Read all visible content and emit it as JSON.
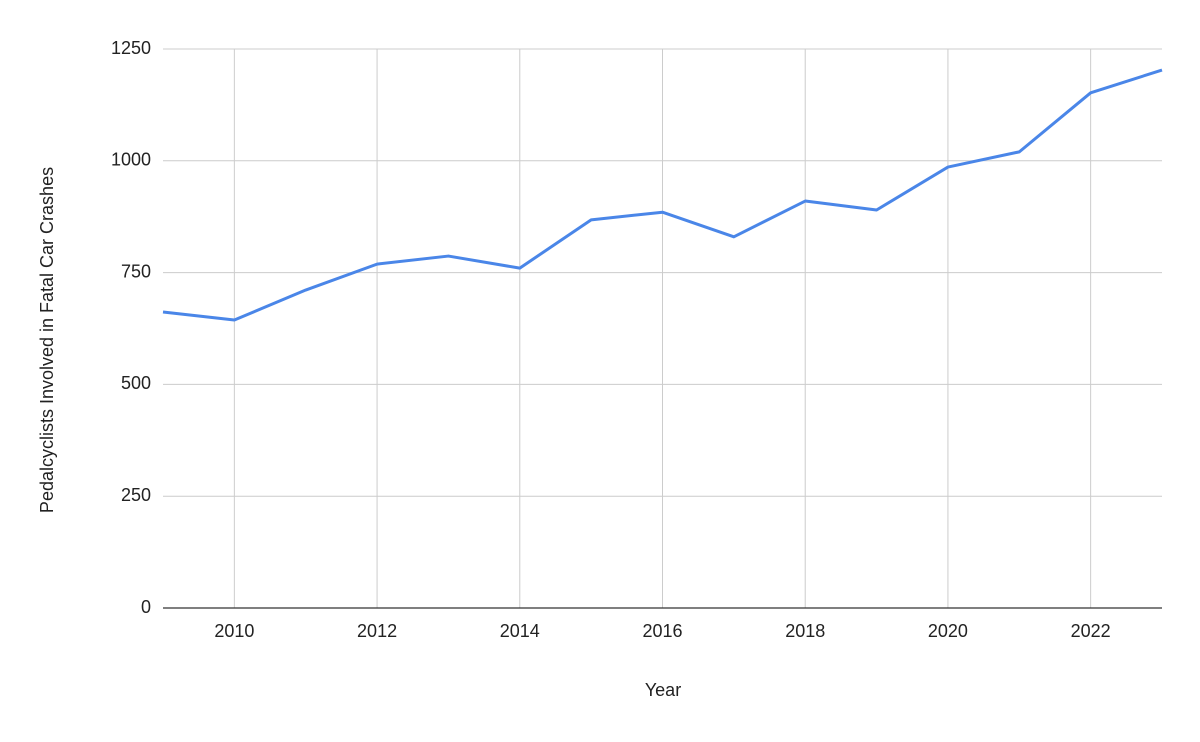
{
  "chart_data": {
    "type": "line",
    "x_label": "Year",
    "y_label": "Pedalcyclists Involved in Fatal Car Crashes",
    "x": [
      2009,
      2010,
      2011,
      2012,
      2013,
      2014,
      2015,
      2016,
      2017,
      2018,
      2019,
      2020,
      2021,
      2022,
      2023
    ],
    "series": [
      {
        "color": "#4a86e8",
        "values": [
          662,
          644,
          711,
          769,
          787,
          760,
          868,
          885,
          830,
          910,
          890,
          986,
          1020,
          1152,
          1203
        ]
      }
    ],
    "xlim": [
      2009,
      2023
    ],
    "xticks": [
      2010,
      2012,
      2014,
      2016,
      2018,
      2020,
      2022
    ],
    "ylim": [
      0,
      1250
    ],
    "yticks": [
      0,
      250,
      500,
      750,
      1000,
      1250
    ],
    "grid": true
  }
}
